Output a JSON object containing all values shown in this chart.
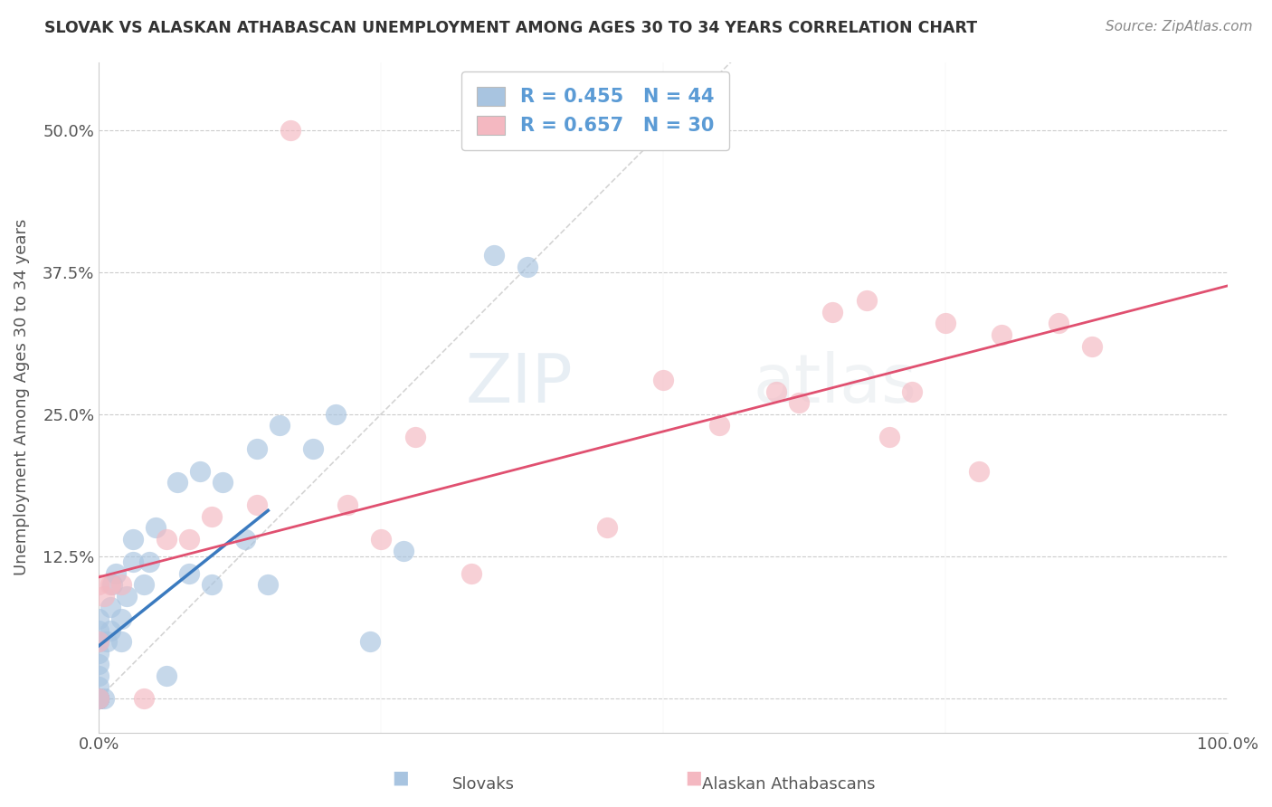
{
  "title": "SLOVAK VS ALASKAN ATHABASCAN UNEMPLOYMENT AMONG AGES 30 TO 34 YEARS CORRELATION CHART",
  "source": "Source: ZipAtlas.com",
  "ylabel": "Unemployment Among Ages 30 to 34 years",
  "xlim": [
    0.0,
    1.0
  ],
  "ylim": [
    -0.03,
    0.56
  ],
  "xticks": [
    0.0,
    0.25,
    0.5,
    0.75,
    1.0
  ],
  "xticklabels": [
    "0.0%",
    "",
    "",
    "",
    "100.0%"
  ],
  "yticks": [
    0.0,
    0.125,
    0.25,
    0.375,
    0.5
  ],
  "yticklabels": [
    "",
    "12.5%",
    "25.0%",
    "37.5%",
    "50.0%"
  ],
  "background_color": "#ffffff",
  "grid_color": "#cccccc",
  "blue_label_color": "#5b9bd5",
  "blue_line_color": "#3a7abf",
  "pink_line_color": "#e05070",
  "blue_scatter_color": "#a8c4e0",
  "pink_scatter_color": "#f4b8c1",
  "watermark_color": "#c8d8e8",
  "slovaks_x": [
    0.0,
    0.0,
    0.0,
    0.0,
    0.0,
    0.0,
    0.0,
    0.0,
    0.0,
    0.0,
    0.0,
    0.0,
    0.0,
    0.0,
    0.005,
    0.007,
    0.01,
    0.01,
    0.012,
    0.015,
    0.02,
    0.02,
    0.025,
    0.03,
    0.03,
    0.04,
    0.045,
    0.05,
    0.06,
    0.07,
    0.08,
    0.09,
    0.1,
    0.11,
    0.13,
    0.14,
    0.15,
    0.16,
    0.19,
    0.21,
    0.24,
    0.27,
    0.35,
    0.38
  ],
  "slovaks_y": [
    0.0,
    0.0,
    0.0,
    0.0,
    0.0,
    0.0,
    0.0,
    0.01,
    0.02,
    0.03,
    0.04,
    0.05,
    0.06,
    0.07,
    0.0,
    0.05,
    0.06,
    0.08,
    0.1,
    0.11,
    0.05,
    0.07,
    0.09,
    0.12,
    0.14,
    0.1,
    0.12,
    0.15,
    0.02,
    0.19,
    0.11,
    0.2,
    0.1,
    0.19,
    0.14,
    0.22,
    0.1,
    0.24,
    0.22,
    0.25,
    0.05,
    0.13,
    0.39,
    0.38
  ],
  "athabascan_x": [
    0.0,
    0.0,
    0.0,
    0.005,
    0.01,
    0.02,
    0.04,
    0.06,
    0.08,
    0.1,
    0.14,
    0.17,
    0.22,
    0.25,
    0.28,
    0.33,
    0.45,
    0.5,
    0.55,
    0.6,
    0.62,
    0.65,
    0.68,
    0.7,
    0.72,
    0.75,
    0.78,
    0.8,
    0.85,
    0.88
  ],
  "athabascan_y": [
    0.0,
    0.05,
    0.1,
    0.09,
    0.1,
    0.1,
    0.0,
    0.14,
    0.14,
    0.16,
    0.17,
    0.5,
    0.17,
    0.14,
    0.23,
    0.11,
    0.15,
    0.28,
    0.24,
    0.27,
    0.26,
    0.34,
    0.35,
    0.23,
    0.27,
    0.33,
    0.2,
    0.32,
    0.33,
    0.31
  ]
}
